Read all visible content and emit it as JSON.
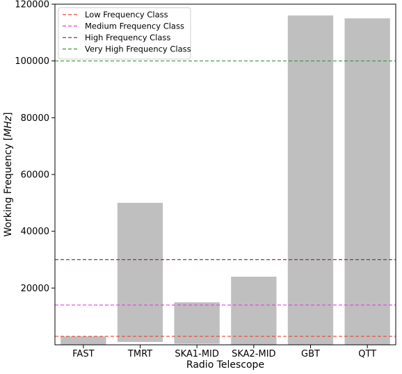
{
  "chart_data": {
    "type": "bar",
    "title": "",
    "xlabel": "Radio Telescope",
    "ylabel_prefix": "Working Frequency [",
    "ylabel_unit": "MHz",
    "ylabel_suffix": "]",
    "categories": [
      "FAST",
      "TMRT",
      "SKA1-MID",
      "SKA2-MID",
      "GBT",
      "QTT"
    ],
    "bars": [
      {
        "bottom": 0,
        "top": 3000
      },
      {
        "bottom": 1000,
        "top": 50000
      },
      {
        "bottom": 350,
        "top": 15000
      },
      {
        "bottom": 0,
        "top": 24000
      },
      {
        "bottom": 0,
        "top": 116000
      },
      {
        "bottom": 0,
        "top": 115000
      }
    ],
    "bar_color": "#bfbfbf",
    "ylim": [
      0,
      120000
    ],
    "yticks": [
      20000,
      40000,
      60000,
      80000,
      100000,
      120000
    ],
    "ytick_labels": [
      "20000",
      "40000",
      "60000",
      "80000",
      "100000",
      "120000"
    ],
    "grid": false,
    "legend_position": "upper-left",
    "reference_lines": [
      {
        "name": "Low Frequency Class",
        "value": 3000,
        "color": "#e8433c"
      },
      {
        "name": "Medium Frequency Class",
        "value": 14000,
        "color": "#e040e0"
      },
      {
        "name": "High Frequency Class",
        "value": 30000,
        "color": "#7a3b4b"
      },
      {
        "name": "Very High Frequency Class",
        "value": 100000,
        "color": "#3f8f3f"
      }
    ]
  }
}
